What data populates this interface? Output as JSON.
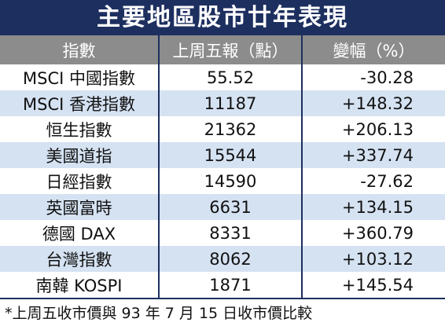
{
  "header": {
    "title": "主要地區股市廿年表現"
  },
  "table": {
    "columns": [
      "指數",
      "上周五報（點）",
      "變幅（%）"
    ],
    "rows": [
      [
        "MSCI 中國指數",
        "55.52",
        "-30.28"
      ],
      [
        "MSCI 香港指數",
        "11187",
        "+148.32"
      ],
      [
        "恒生指數",
        "21362",
        "+206.13"
      ],
      [
        "美國道指",
        "15544",
        "+337.74"
      ],
      [
        "日經指數",
        "14590",
        "-27.62"
      ],
      [
        "英國富時",
        "6631",
        "+134.15"
      ],
      [
        "德國 DAX",
        "8331",
        "+360.79"
      ],
      [
        "台灣指數",
        "8062",
        "+103.12"
      ],
      [
        "南韓 KOSPI",
        "1871",
        "+145.54"
      ]
    ]
  },
  "footnote": "*上周五收市價與 93 年 7 月 15 日收市價比較"
}
